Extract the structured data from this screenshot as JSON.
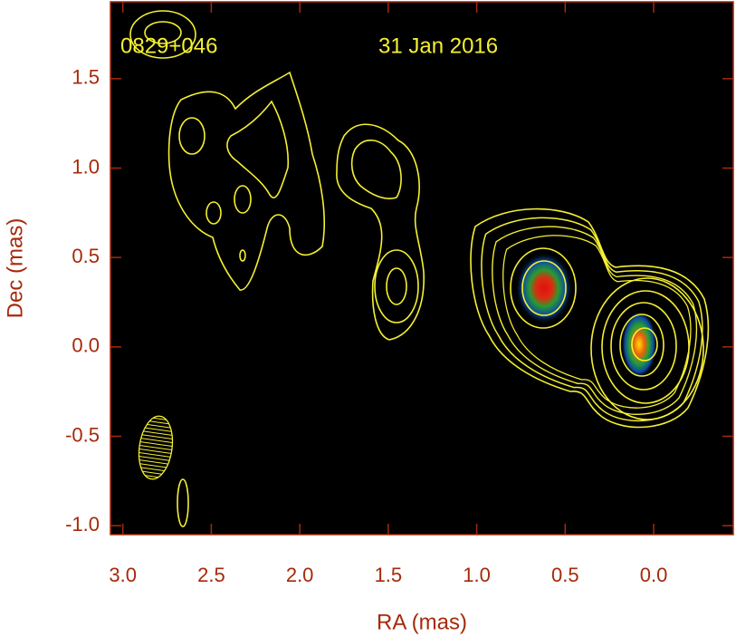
{
  "chart_data": {
    "type": "contour",
    "annotations": [
      "0829+046",
      "31 Jan 2016"
    ],
    "xlabel": "RA (mas)",
    "ylabel": "Dec (mas)",
    "xlim": [
      3.07,
      -0.45
    ],
    "ylim": [
      -1.05,
      1.93
    ],
    "xticks": [
      {
        "value": 3,
        "label": "3.0"
      },
      2.5,
      {
        "value": 2,
        "label": "2.0"
      },
      1.5,
      {
        "value": 1,
        "label": "1.0"
      },
      0.5,
      {
        "value": 0,
        "label": "0.0"
      }
    ],
    "yticks": [
      {
        "value": -1,
        "label": "-1.0"
      },
      -0.5,
      {
        "value": 0,
        "label": "0.0"
      },
      0.5,
      {
        "value": 1,
        "label": "1.0"
      },
      1.5
    ],
    "axis_color": "#a52a0a",
    "contour_color": "#f5f032"
  }
}
